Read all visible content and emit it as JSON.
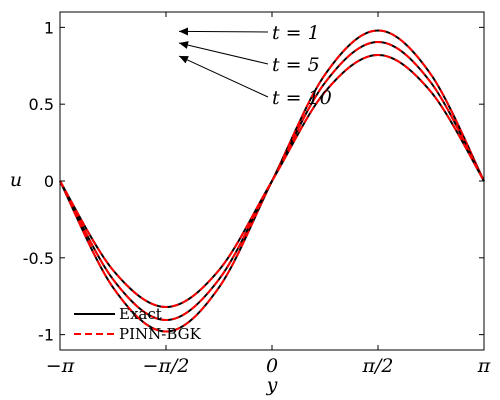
{
  "chart_data": {
    "type": "line",
    "title": "",
    "xlabel": "y",
    "ylabel": "u",
    "xlim": [
      -3.14159,
      3.14159
    ],
    "ylim": [
      -1.1,
      1.1
    ],
    "grid": false,
    "legend_placement": "bottom-left",
    "x_ticks": [
      {
        "value": -3.14159,
        "label": "−π"
      },
      {
        "value": -1.5708,
        "label": "−π/2"
      },
      {
        "value": 0,
        "label": "0"
      },
      {
        "value": 1.5708,
        "label": "π/2"
      },
      {
        "value": 3.14159,
        "label": "π"
      }
    ],
    "y_ticks": [
      {
        "value": 1,
        "label": "1"
      },
      {
        "value": 0.5,
        "label": "0.5"
      },
      {
        "value": 0,
        "label": "0"
      },
      {
        "value": -0.5,
        "label": "-0.5"
      },
      {
        "value": -1,
        "label": "-1"
      }
    ],
    "x": [
      -3.14159,
      -2.35619,
      -1.5708,
      -0.785398,
      0,
      0.785398,
      1.5708,
      2.35619,
      3.14159
    ],
    "curves": [
      {
        "t_label": "t = 1",
        "amplitude": 0.98,
        "values": [
          0,
          -0.693,
          -0.98,
          -0.693,
          0,
          0.693,
          0.98,
          0.693,
          0
        ]
      },
      {
        "t_label": "t = 5",
        "amplitude": 0.905,
        "values": [
          0,
          -0.64,
          -0.905,
          -0.64,
          0,
          0.64,
          0.905,
          0.64,
          0
        ]
      },
      {
        "t_label": "t = 10",
        "amplitude": 0.82,
        "values": [
          0,
          -0.58,
          -0.82,
          -0.58,
          0,
          0.58,
          0.82,
          0.58,
          0
        ]
      }
    ],
    "series": [
      {
        "name": "Exact",
        "color": "#000000",
        "style": "solid"
      },
      {
        "name": "PINN-BGK",
        "color": "#ff0000",
        "style": "dashed"
      }
    ]
  }
}
